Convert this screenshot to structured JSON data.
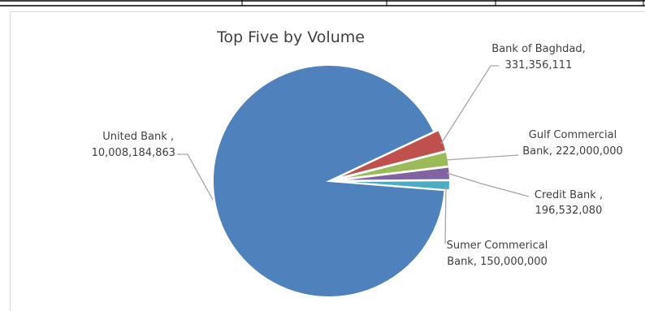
{
  "chart_data": {
    "type": "pie",
    "title": "Top Five by Volume",
    "slices": [
      {
        "label": "United Bank ,",
        "value_label": "10,008,184,863",
        "value": 10008184863,
        "color": "#4f81bd"
      },
      {
        "label": "Bank of Baghdad,",
        "value_label": "331,356,111",
        "value": 331356111,
        "color": "#c0504d"
      },
      {
        "label": "Gulf Commercial",
        "value_label": "Bank, 222,000,000",
        "value": 222000000,
        "color": "#9bbb59"
      },
      {
        "label": "Credit Bank ,",
        "value_label": "196,532,080",
        "value": 196532080,
        "color": "#8064a2"
      },
      {
        "label": "Sumer Commerical",
        "value_label": "Bank, 150,000,000",
        "value": 150000000,
        "color": "#4bacc6"
      }
    ]
  }
}
